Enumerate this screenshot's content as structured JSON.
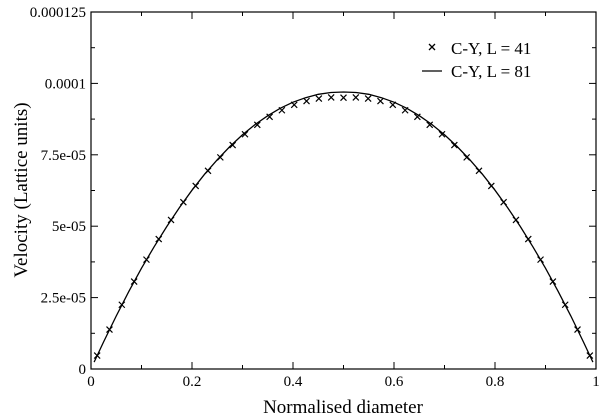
{
  "chart_data": {
    "type": "line",
    "title": "",
    "xlabel": "Normalised diameter",
    "ylabel": "Velocity (Lattice units)",
    "xlim": [
      0,
      1
    ],
    "ylim": [
      0,
      0.000125
    ],
    "x_ticks": [
      0,
      0.2,
      0.4,
      0.6,
      0.8,
      1
    ],
    "x_tick_labels": [
      "0",
      "0.2",
      "0.4",
      "0.6",
      "0.8",
      "1"
    ],
    "y_ticks": [
      0,
      2.5e-05,
      5e-05,
      7.5e-05,
      0.0001,
      0.000125
    ],
    "y_tick_labels": [
      "0",
      "2.5e-05",
      "5e-05",
      "7.5e-05",
      "0.0001",
      "0.000125"
    ],
    "grid": false,
    "legend_position": "top-right",
    "series": [
      {
        "name": "C-Y, L = 41",
        "marker": "x",
        "line": false,
        "x": [
          0.0122,
          0.0366,
          0.061,
          0.0854,
          0.1098,
          0.1341,
          0.1585,
          0.1829,
          0.2073,
          0.2317,
          0.2561,
          0.2805,
          0.3049,
          0.3293,
          0.3537,
          0.378,
          0.4024,
          0.4268,
          0.4512,
          0.4756,
          0.5,
          0.5244,
          0.5488,
          0.5732,
          0.5976,
          0.622,
          0.6463,
          0.6707,
          0.6951,
          0.7195,
          0.7439,
          0.7683,
          0.7927,
          0.8171,
          0.8415,
          0.8659,
          0.8902,
          0.9146,
          0.939,
          0.9634,
          0.9878
        ],
        "y": [
          4.7e-06,
          1.38e-05,
          2.25e-05,
          3.06e-05,
          3.83e-05,
          4.55e-05,
          5.22e-05,
          5.84e-05,
          6.41e-05,
          6.94e-05,
          7.41e-05,
          7.84e-05,
          8.22e-05,
          8.55e-05,
          8.83e-05,
          9.06e-05,
          9.25e-05,
          9.38e-05,
          9.47e-05,
          9.51e-05,
          9.5e-05,
          9.51e-05,
          9.47e-05,
          9.38e-05,
          9.25e-05,
          9.06e-05,
          8.83e-05,
          8.55e-05,
          8.22e-05,
          7.84e-05,
          7.41e-05,
          6.94e-05,
          6.41e-05,
          5.84e-05,
          5.22e-05,
          4.55e-05,
          3.83e-05,
          3.06e-05,
          2.25e-05,
          1.38e-05,
          4.7e-06
        ]
      },
      {
        "name": "C-Y, L = 81",
        "marker": "none",
        "line": true,
        "x": [
          0.0062,
          0.025,
          0.05,
          0.075,
          0.1,
          0.125,
          0.15,
          0.175,
          0.2,
          0.225,
          0.25,
          0.275,
          0.3,
          0.325,
          0.35,
          0.375,
          0.4,
          0.425,
          0.45,
          0.475,
          0.5,
          0.525,
          0.55,
          0.575,
          0.6,
          0.625,
          0.65,
          0.675,
          0.7,
          0.725,
          0.75,
          0.775,
          0.8,
          0.825,
          0.85,
          0.875,
          0.9,
          0.925,
          0.95,
          0.975,
          0.9938
        ],
        "y": [
          2.4e-06,
          9.5e-06,
          1.86e-05,
          2.72e-05,
          3.53e-05,
          4.28e-05,
          4.99e-05,
          5.65e-05,
          6.26e-05,
          6.82e-05,
          7.33e-05,
          7.79e-05,
          8.2e-05,
          8.56e-05,
          8.87e-05,
          9.13e-05,
          9.34e-05,
          9.5e-05,
          9.62e-05,
          9.68e-05,
          9.7e-05,
          9.68e-05,
          9.62e-05,
          9.5e-05,
          9.34e-05,
          9.13e-05,
          8.87e-05,
          8.56e-05,
          8.2e-05,
          7.79e-05,
          7.33e-05,
          6.82e-05,
          6.26e-05,
          5.65e-05,
          4.99e-05,
          4.28e-05,
          3.53e-05,
          2.72e-05,
          1.86e-05,
          9.5e-06,
          2.4e-06
        ]
      }
    ]
  }
}
